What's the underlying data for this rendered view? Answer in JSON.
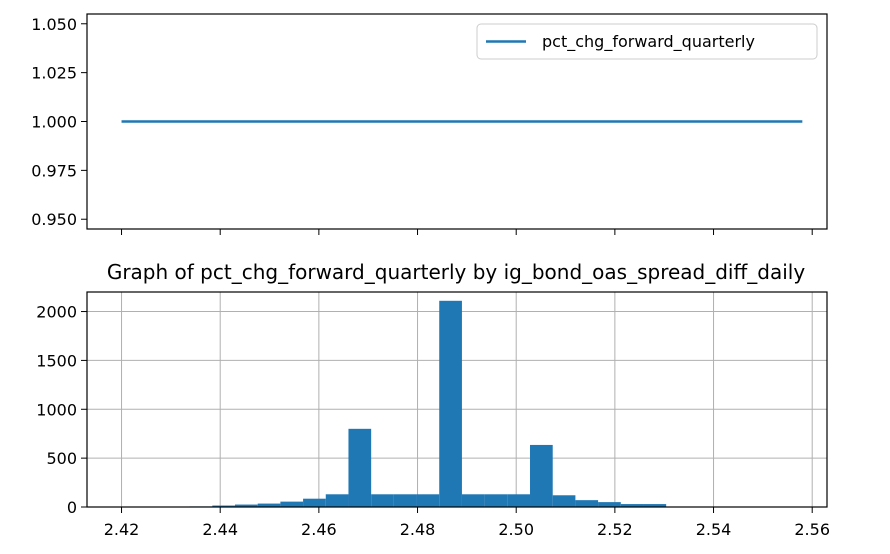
{
  "chart_data": [
    {
      "type": "line",
      "title": "",
      "xlabel": "",
      "ylabel": "",
      "x_range": [
        2.42,
        2.558
      ],
      "ylim": [
        0.945,
        1.055
      ],
      "yticks": [
        "0.950",
        "0.975",
        "1.000",
        "1.025",
        "1.050"
      ],
      "ytick_values": [
        0.95,
        0.975,
        1.0,
        1.025,
        1.05
      ],
      "series": [
        {
          "name": "pct_chg_forward_quarterly",
          "x": [
            2.42,
            2.558
          ],
          "values": [
            1.0,
            1.0
          ],
          "color": "#1f77b4"
        }
      ],
      "legend": "top-right",
      "grid": false
    },
    {
      "type": "bar",
      "title": "Graph of pct_chg_forward_quarterly by ig_bond_oas_spread_diff_daily",
      "xlabel": "",
      "ylabel": "",
      "xlim": [
        2.413,
        2.563
      ],
      "ylim": [
        0,
        2200
      ],
      "xticks": [
        "2.42",
        "2.44",
        "2.46",
        "2.48",
        "2.50",
        "2.52",
        "2.54",
        "2.56"
      ],
      "xtick_values": [
        2.42,
        2.44,
        2.46,
        2.48,
        2.5,
        2.52,
        2.54,
        2.56
      ],
      "yticks": [
        "0",
        "500",
        "1000",
        "1500",
        "2000"
      ],
      "ytick_values": [
        0,
        500,
        1000,
        1500,
        2000
      ],
      "bin_edges": [
        2.42,
        2.4246,
        2.4292,
        2.4338,
        2.4384,
        2.443,
        2.4476,
        2.4522,
        2.4568,
        2.4614,
        2.466,
        2.4706,
        2.4752,
        2.4798,
        2.4844,
        2.489,
        2.4936,
        2.4982,
        2.5028,
        2.5074,
        2.512,
        2.5166,
        2.5212,
        2.5258,
        2.5304,
        2.535,
        2.5396,
        2.5442,
        2.5488,
        2.5534,
        2.558
      ],
      "values": [
        3,
        3,
        4,
        6,
        15,
        25,
        35,
        55,
        85,
        130,
        800,
        130,
        130,
        130,
        2110,
        130,
        130,
        130,
        635,
        120,
        70,
        50,
        30,
        30,
        5,
        4,
        3,
        3,
        2,
        2
      ],
      "color": "#1f77b4",
      "grid": true
    }
  ]
}
